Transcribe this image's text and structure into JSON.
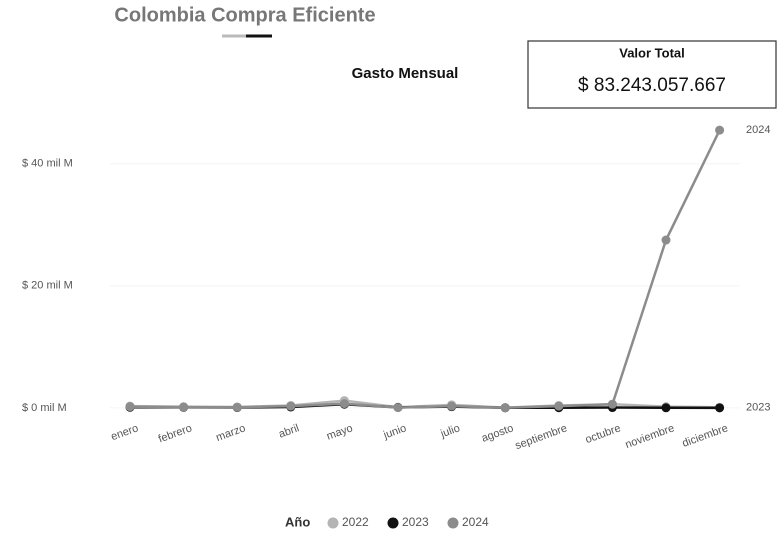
{
  "header": "Colombia Compra Eficiente",
  "card": {
    "title": "Valor Total",
    "value": "$ 83.243.057.667"
  },
  "chart_data": {
    "type": "line",
    "title": "Gasto Mensual",
    "legend_title": "Año",
    "categories": [
      "enero",
      "febrero",
      "marzo",
      "abril",
      "mayo",
      "junio",
      "julio",
      "agosto",
      "septiembre",
      "octubre",
      "noviembre",
      "diciembre"
    ],
    "series": [
      {
        "name": "2022",
        "color": "#b4b4b4",
        "values": [
          300000000,
          200000000,
          150000000,
          400000000,
          1200000000,
          100000000,
          500000000,
          50000000,
          400000000,
          600000000,
          200000000,
          100000000
        ]
      },
      {
        "name": "2023",
        "color": "#111111",
        "values": [
          100000000,
          80000000,
          60000000,
          150000000,
          600000000,
          80000000,
          200000000,
          20000000,
          30000000,
          60000000,
          20000000,
          10000000
        ]
      },
      {
        "name": "2024",
        "color": "#8c8c8c",
        "values": [
          200000000,
          100000000,
          100000000,
          300000000,
          700000000,
          50000000,
          300000000,
          30000000,
          300000000,
          600000000,
          27500000000,
          45500000000
        ]
      }
    ],
    "ylim": [
      -1000000000,
      47000000000
    ],
    "yticks": [
      {
        "value": 0,
        "label": "$ 0 mil M"
      },
      {
        "value": 20000000000,
        "label": "$ 20 mil M"
      },
      {
        "value": 40000000000,
        "label": "$ 40 mil M"
      }
    ],
    "end_labels": [
      "2024",
      "2023"
    ]
  }
}
